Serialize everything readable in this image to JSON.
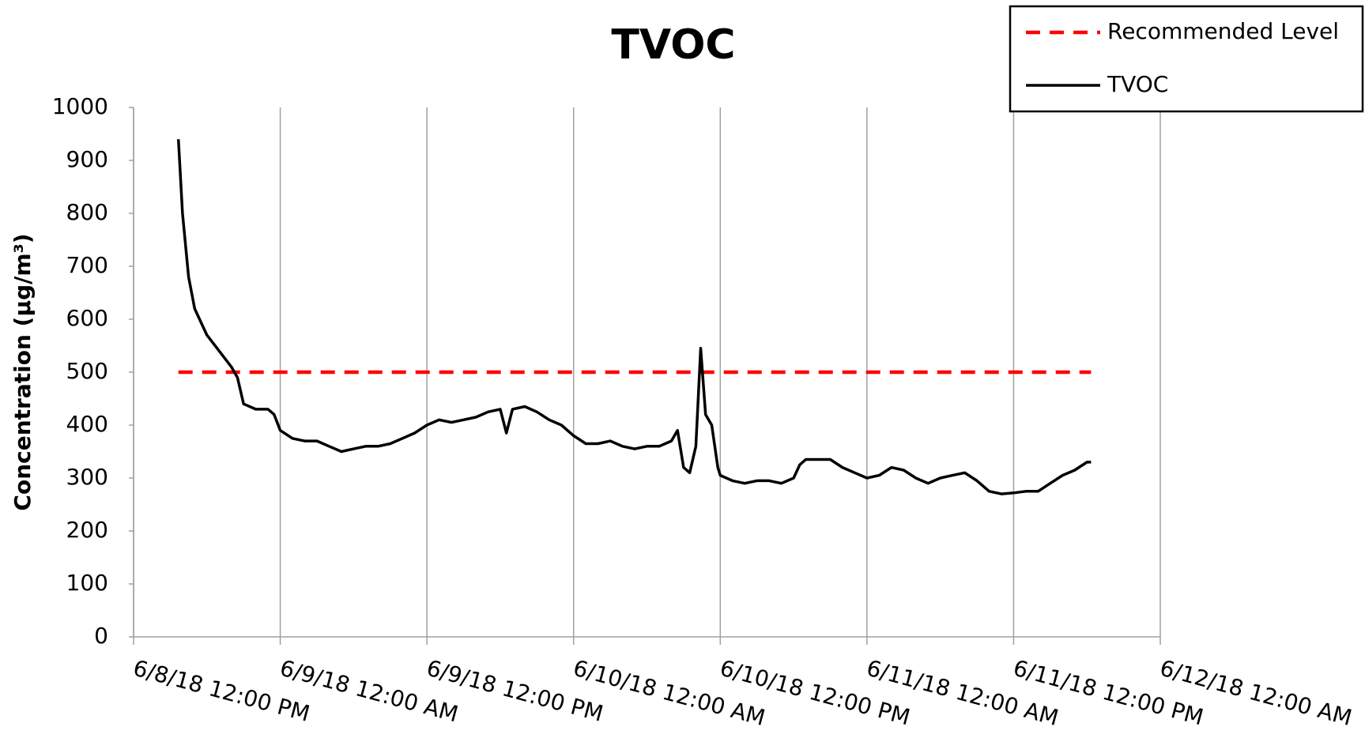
{
  "chart_data": {
    "type": "line",
    "title": "TVOC",
    "y_label": "Concentration (µg/m³)",
    "legend": "top-right",
    "grid": "x",
    "xlim": [
      "2018-06-08T12:00",
      "2018-06-12T00:00"
    ],
    "xticks": [
      {
        "value": "2018-06-08T12:00",
        "label": "6/8/18 12:00 PM"
      },
      {
        "value": "2018-06-09T00:00",
        "label": "6/9/18 12:00 AM"
      },
      {
        "value": "2018-06-09T12:00",
        "label": "6/9/18 12:00 PM"
      },
      {
        "value": "2018-06-10T00:00",
        "label": "6/10/18 12:00 AM"
      },
      {
        "value": "2018-06-10T12:00",
        "label": "6/10/18 12:00 PM"
      },
      {
        "value": "2018-06-11T00:00",
        "label": "6/11/18 12:00 AM"
      },
      {
        "value": "2018-06-11T12:00",
        "label": "6/11/18 12:00 PM"
      },
      {
        "value": "2018-06-12T00:00",
        "label": "6/12/18 12:00 AM"
      }
    ],
    "ylim": [
      0,
      1000
    ],
    "yticks": [
      0,
      100,
      200,
      300,
      400,
      500,
      600,
      700,
      800,
      900,
      1000
    ],
    "series": [
      {
        "name": "Recommended Level",
        "color": "#ff0000",
        "dashed": true,
        "x": [
          "2018-06-08T15:40",
          "2018-06-11T18:20"
        ],
        "values": [
          500,
          500
        ]
      },
      {
        "name": "TVOC",
        "color": "#000000",
        "dashed": false,
        "x": [
          "2018-06-08T15:40",
          "2018-06-08T16:00",
          "2018-06-08T16:30",
          "2018-06-08T17:00",
          "2018-06-08T18:00",
          "2018-06-08T19:00",
          "2018-06-08T20:00",
          "2018-06-08T20:30",
          "2018-06-08T21:00",
          "2018-06-08T22:00",
          "2018-06-08T23:00",
          "2018-06-08T23:30",
          "2018-06-09T00:00",
          "2018-06-09T01:00",
          "2018-06-09T02:00",
          "2018-06-09T03:00",
          "2018-06-09T04:00",
          "2018-06-09T05:00",
          "2018-06-09T06:00",
          "2018-06-09T07:00",
          "2018-06-09T08:00",
          "2018-06-09T09:00",
          "2018-06-09T10:00",
          "2018-06-09T11:00",
          "2018-06-09T12:00",
          "2018-06-09T13:00",
          "2018-06-09T14:00",
          "2018-06-09T15:00",
          "2018-06-09T16:00",
          "2018-06-09T17:00",
          "2018-06-09T18:00",
          "2018-06-09T18:30",
          "2018-06-09T19:00",
          "2018-06-09T20:00",
          "2018-06-09T21:00",
          "2018-06-09T22:00",
          "2018-06-09T23:00",
          "2018-06-10T00:00",
          "2018-06-10T01:00",
          "2018-06-10T02:00",
          "2018-06-10T03:00",
          "2018-06-10T04:00",
          "2018-06-10T05:00",
          "2018-06-10T06:00",
          "2018-06-10T07:00",
          "2018-06-10T08:00",
          "2018-06-10T08:30",
          "2018-06-10T09:00",
          "2018-06-10T09:30",
          "2018-06-10T10:00",
          "2018-06-10T10:24",
          "2018-06-10T10:48",
          "2018-06-10T11:18",
          "2018-06-10T11:48",
          "2018-06-10T12:00",
          "2018-06-10T13:00",
          "2018-06-10T14:00",
          "2018-06-10T15:00",
          "2018-06-10T16:00",
          "2018-06-10T17:00",
          "2018-06-10T18:00",
          "2018-06-10T18:30",
          "2018-06-10T19:00",
          "2018-06-10T21:00",
          "2018-06-10T22:00",
          "2018-06-10T23:00",
          "2018-06-11T00:00",
          "2018-06-11T01:00",
          "2018-06-11T02:00",
          "2018-06-11T03:00",
          "2018-06-11T04:00",
          "2018-06-11T05:00",
          "2018-06-11T06:00",
          "2018-06-11T07:00",
          "2018-06-11T08:00",
          "2018-06-11T09:00",
          "2018-06-11T10:00",
          "2018-06-11T11:00",
          "2018-06-11T12:00",
          "2018-06-11T13:00",
          "2018-06-11T14:00",
          "2018-06-11T15:00",
          "2018-06-11T16:00",
          "2018-06-11T17:00",
          "2018-06-11T18:00",
          "2018-06-11T18:20"
        ],
        "values": [
          940,
          800,
          680,
          620,
          570,
          540,
          510,
          490,
          440,
          430,
          430,
          420,
          390,
          375,
          370,
          370,
          360,
          350,
          355,
          360,
          360,
          365,
          375,
          385,
          400,
          410,
          405,
          410,
          415,
          425,
          430,
          385,
          430,
          435,
          425,
          410,
          400,
          380,
          365,
          365,
          370,
          360,
          355,
          360,
          360,
          370,
          390,
          320,
          310,
          360,
          545,
          420,
          400,
          320,
          305,
          295,
          290,
          295,
          295,
          290,
          300,
          325,
          335,
          335,
          320,
          310,
          300,
          305,
          320,
          315,
          300,
          290,
          300,
          305,
          310,
          295,
          275,
          270,
          272,
          275,
          275,
          290,
          305,
          315,
          330,
          330
        ]
      }
    ]
  }
}
